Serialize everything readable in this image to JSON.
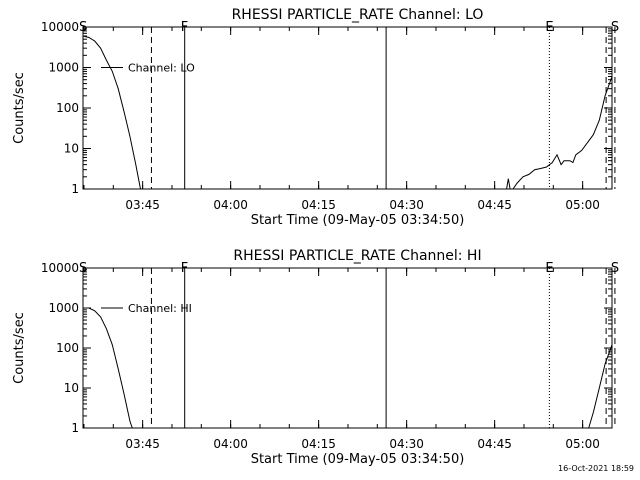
{
  "footer_date": "16-Oct-2021 18:59",
  "chart_data": [
    {
      "type": "line",
      "title": "RHESSI PARTICLE_RATE Channel: LO",
      "xlabel": "Start Time (09-May-05 03:34:50)",
      "ylabel": "Counts/sec",
      "yscale": "log",
      "ylim": [
        1,
        10000
      ],
      "xlim_minutes_after_start": [
        0,
        90.17
      ],
      "x_tick_labels": [
        "03:45",
        "04:00",
        "04:15",
        "04:30",
        "04:45",
        "05:00"
      ],
      "y_tick_labels": [
        "1",
        "10",
        "100",
        "1000",
        "10000"
      ],
      "legend": {
        "label": "Channel: LO",
        "position": "top-left"
      },
      "markers": [
        {
          "label": "S",
          "time": "03:34:50",
          "style": "none"
        },
        {
          "label": "",
          "time": "03:46:30",
          "style": "dashed"
        },
        {
          "label": "F",
          "time": "03:52:10",
          "style": "solid"
        },
        {
          "label": "",
          "time": "04:26:30",
          "style": "solid"
        },
        {
          "label": "E",
          "time": "04:54:20",
          "style": "dotted"
        },
        {
          "label": "",
          "time": "05:04:00",
          "style": "dashed"
        },
        {
          "label": "S",
          "time": "05:05:30",
          "style": "dashed"
        }
      ],
      "series": [
        {
          "segments": [
            [
              [
                0,
                6000
              ],
              [
                1,
                5500
              ],
              [
                2,
                4500
              ],
              [
                3,
                3000
              ],
              [
                4,
                1500
              ],
              [
                5,
                800
              ],
              [
                6,
                300
              ],
              [
                7,
                80
              ],
              [
                8,
                20
              ],
              [
                9,
                4
              ],
              [
                9.8,
                1
              ]
            ],
            [
              [
                72.2,
                1
              ],
              [
                72.5,
                1.8
              ],
              [
                72.8,
                1
              ],
              [
                73.3,
                1
              ],
              [
                74,
                1.4
              ],
              [
                75,
                2
              ],
              [
                76,
                2.3
              ],
              [
                77,
                3
              ],
              [
                78,
                3.2
              ],
              [
                79,
                3.5
              ],
              [
                80,
                4.5
              ],
              [
                80.8,
                7
              ],
              [
                81.5,
                4
              ],
              [
                82,
                5
              ],
              [
                83,
                5
              ],
              [
                83.5,
                4.5
              ],
              [
                84,
                7
              ],
              [
                85,
                9
              ],
              [
                86,
                14
              ],
              [
                87,
                22
              ],
              [
                88,
                50
              ],
              [
                89,
                200
              ],
              [
                90.17,
                600
              ]
            ]
          ]
        }
      ]
    },
    {
      "type": "line",
      "title": "RHESSI PARTICLE_RATE Channel: HI",
      "xlabel": "Start Time (09-May-05 03:34:50)",
      "ylabel": "Counts/sec",
      "yscale": "log",
      "ylim": [
        1,
        10000
      ],
      "xlim_minutes_after_start": [
        0,
        90.17
      ],
      "x_tick_labels": [
        "03:45",
        "04:00",
        "04:15",
        "04:30",
        "04:45",
        "05:00"
      ],
      "y_tick_labels": [
        "1",
        "10",
        "100",
        "1000",
        "10000"
      ],
      "legend": {
        "label": "Channel: HI",
        "position": "top-left"
      },
      "markers": [
        {
          "label": "S",
          "time": "03:34:50",
          "style": "none"
        },
        {
          "label": "",
          "time": "03:46:30",
          "style": "dashed"
        },
        {
          "label": "F",
          "time": "03:52:10",
          "style": "solid"
        },
        {
          "label": "",
          "time": "04:26:30",
          "style": "solid"
        },
        {
          "label": "E",
          "time": "04:54:20",
          "style": "dotted"
        },
        {
          "label": "",
          "time": "05:04:00",
          "style": "dashed"
        },
        {
          "label": "S",
          "time": "05:05:30",
          "style": "dashed"
        }
      ],
      "series": [
        {
          "segments": [
            [
              [
                0,
                1000
              ],
              [
                1,
                1000
              ],
              [
                2,
                850
              ],
              [
                3,
                600
              ],
              [
                4,
                300
              ],
              [
                5,
                120
              ],
              [
                6,
                30
              ],
              [
                7,
                7
              ],
              [
                8,
                1.5
              ],
              [
                8.4,
                1
              ]
            ],
            [
              [
                86.2,
                1
              ],
              [
                87,
                2.5
              ],
              [
                88,
                10
              ],
              [
                89,
                40
              ],
              [
                90.17,
                120
              ]
            ]
          ]
        }
      ]
    }
  ]
}
